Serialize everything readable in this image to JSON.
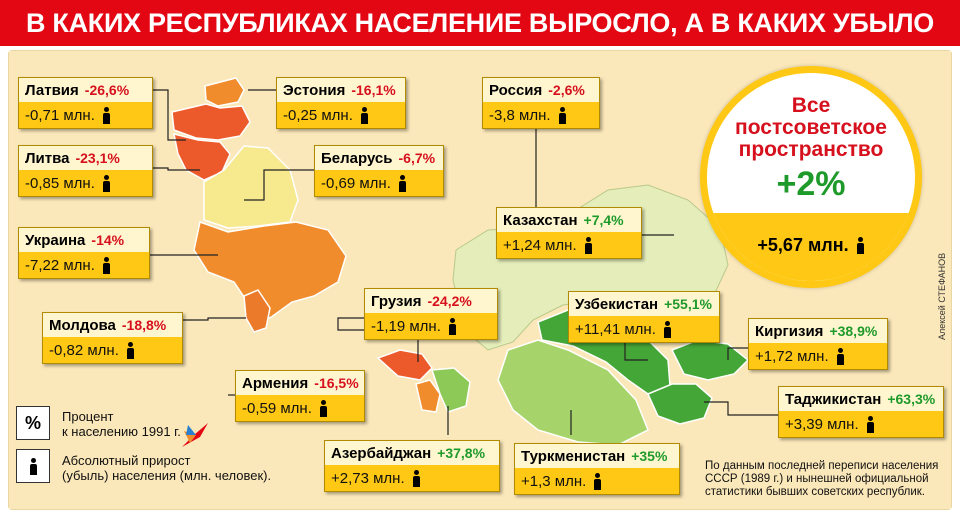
{
  "title": "В КАКИХ РЕСПУБЛИКАХ НАСЕЛЕНИЕ ВЫРОСЛО, А В КАКИХ УБЫЛО",
  "author": "Алексей СТЕФАНОВ",
  "colors": {
    "title_bg": "#e30613",
    "map_bg": "#fbe8ba",
    "decline_strong": "#ec5a2b",
    "decline_medium": "#f08c2c",
    "decline_light": "#f6e98e",
    "growth_light": "#c8e6a0",
    "growth_medium": "#8cc957",
    "growth_strong": "#45a638",
    "negative_text": "#d6101d",
    "positive_text": "#1e9a2a",
    "card_value_bg": "#ffc814"
  },
  "republics": [
    {
      "name": "Латвия",
      "pct": "-26,6%",
      "value": "-0,71 млн.",
      "trend": "neg"
    },
    {
      "name": "Эстония",
      "pct": "-16,1%",
      "value": "-0,25 млн.",
      "trend": "neg"
    },
    {
      "name": "Россия",
      "pct": "-2,6%",
      "value": "-3,8 млн.",
      "trend": "neg"
    },
    {
      "name": "Литва",
      "pct": "-23,1%",
      "value": "-0,85 млн.",
      "trend": "neg"
    },
    {
      "name": "Беларусь",
      "pct": "-6,7%",
      "value": "-0,69 млн.",
      "trend": "neg"
    },
    {
      "name": "Казахстан",
      "pct": "+7,4%",
      "value": "+1,24 млн.",
      "trend": "pos"
    },
    {
      "name": "Украина",
      "pct": "-14%",
      "value": "-7,22 млн.",
      "trend": "neg"
    },
    {
      "name": "Грузия",
      "pct": "-24,2%",
      "value": "-1,19 млн.",
      "trend": "neg"
    },
    {
      "name": "Узбекистан",
      "pct": "+55,1%",
      "value": "+11,41 млн.",
      "trend": "pos"
    },
    {
      "name": "Молдова",
      "pct": "-18,8%",
      "value": "-0,82 млн.",
      "trend": "neg"
    },
    {
      "name": "Киргизия",
      "pct": "+38,9%",
      "value": "+1,72 млн.",
      "trend": "pos"
    },
    {
      "name": "Армения",
      "pct": "-16,5%",
      "value": "-0,59 млн.",
      "trend": "neg"
    },
    {
      "name": "Таджикистан",
      "pct": "+63,3%",
      "value": "+3,39 млн.",
      "trend": "pos"
    },
    {
      "name": "Азербайджан",
      "pct": "+37,8%",
      "value": "+2,73 млн.",
      "trend": "pos"
    },
    {
      "name": "Туркменистан",
      "pct": "+35%",
      "value": "+1,3 млн.",
      "trend": "pos"
    }
  ],
  "total": {
    "label_line1": "Все",
    "label_line2": "постсоветское",
    "label_line3": "пространство",
    "pct": "+2%",
    "value": "+5,67 млн."
  },
  "legend": {
    "percent_symbol": "%",
    "percent_line1": "Процент",
    "percent_line2": "к населению 1991 г.",
    "absolute_line1": "Абсолютный прирост",
    "absolute_line2": "(убыль) населения (млн. человек)."
  },
  "source_note": "По данным последней переписи населения СССР (1989 г.) и нынешней официальной статистики бывших советских республик.",
  "logo_icon": "bird-logo-icon",
  "person_icon": "person-icon"
}
